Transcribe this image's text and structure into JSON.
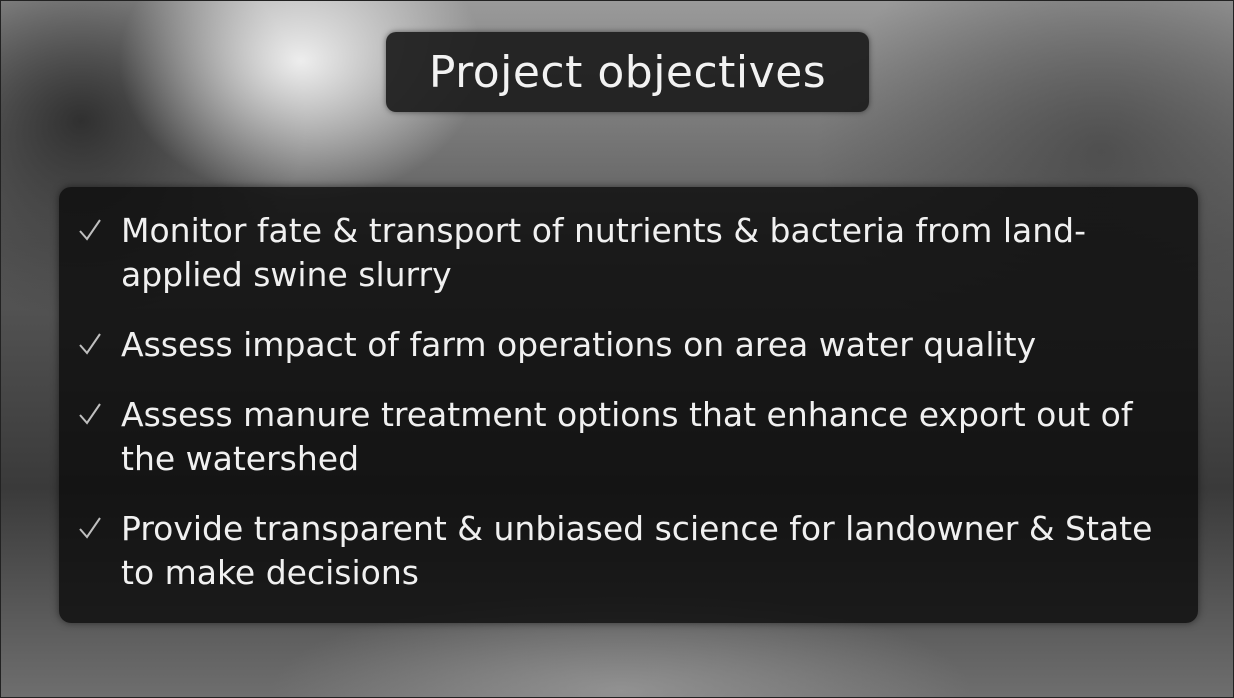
{
  "header": {
    "title": "Project objectives"
  },
  "bullets": [
    "Monitor fate & transport of nutrients & bacteria from land-applied swine slurry",
    "Assess impact of farm operations on area water quality",
    "Assess manure treatment options that enhance export out of the watershed",
    "Provide transparent & unbiased science for landowner & State to make decisions"
  ]
}
